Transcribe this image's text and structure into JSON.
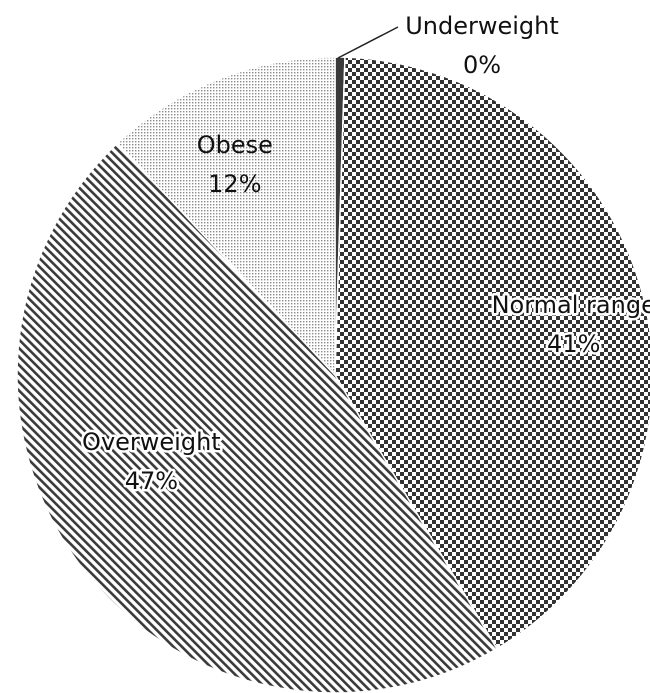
{
  "chart_data": {
    "type": "pie",
    "title": "",
    "slices": [
      {
        "name": "Underweight",
        "value": 0.5,
        "label": "0%",
        "pattern": "solid"
      },
      {
        "name": "Normal range",
        "value": 41,
        "label": "41%",
        "pattern": "checker"
      },
      {
        "name": "Overweight",
        "value": 46.5,
        "label": "47%",
        "pattern": "diagonal-stripes"
      },
      {
        "name": "Obese",
        "value": 12,
        "label": "12%",
        "pattern": "dots"
      }
    ],
    "start": "12 o'clock",
    "direction": "clockwise",
    "legend": "none",
    "labels": "category name and percentage on or beside each slice"
  },
  "colors": {
    "ink": "#3a3a3a",
    "outline": "#ffffff",
    "text": "#111111",
    "background": "#ffffff"
  }
}
